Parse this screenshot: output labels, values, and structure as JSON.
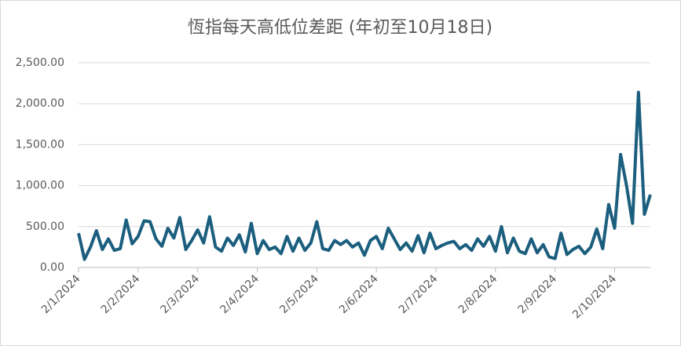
{
  "chart_data": {
    "type": "line",
    "title": "恆指每天高低位差距 (年初至10月18日)",
    "categories": [
      "2/1/2024",
      null,
      null,
      null,
      null,
      null,
      null,
      null,
      null,
      null,
      "2/2/2024",
      null,
      null,
      null,
      null,
      null,
      null,
      null,
      null,
      null,
      "2/3/2024",
      null,
      null,
      null,
      null,
      null,
      null,
      null,
      null,
      null,
      "2/4/2024",
      null,
      null,
      null,
      null,
      null,
      null,
      null,
      null,
      null,
      "2/5/2024",
      null,
      null,
      null,
      null,
      null,
      null,
      null,
      null,
      null,
      "2/6/2024",
      null,
      null,
      null,
      null,
      null,
      null,
      null,
      null,
      null,
      "2/7/2024",
      null,
      null,
      null,
      null,
      null,
      null,
      null,
      null,
      null,
      "2/8/2024",
      null,
      null,
      null,
      null,
      null,
      null,
      null,
      null,
      null,
      "2/9/2024",
      null,
      null,
      null,
      null,
      null,
      null,
      null,
      null,
      null,
      "2/10/2024",
      null,
      null,
      null,
      null,
      null,
      null
    ],
    "series": [
      {
        "color": "#1b5e7e",
        "values": [
          420,
          100,
          250,
          450,
          220,
          350,
          210,
          230,
          580,
          290,
          380,
          570,
          560,
          350,
          260,
          480,
          360,
          610,
          220,
          330,
          460,
          300,
          620,
          250,
          200,
          360,
          270,
          400,
          190,
          540,
          170,
          330,
          220,
          250,
          170,
          380,
          200,
          360,
          210,
          300,
          560,
          230,
          210,
          330,
          280,
          330,
          250,
          300,
          150,
          330,
          380,
          230,
          480,
          350,
          220,
          300,
          200,
          390,
          180,
          420,
          230,
          270,
          300,
          320,
          230,
          280,
          210,
          350,
          260,
          380,
          200,
          500,
          180,
          360,
          200,
          170,
          350,
          180,
          280,
          130,
          110,
          420,
          160,
          220,
          260,
          170,
          250,
          470,
          230,
          770,
          480,
          1380,
          1000,
          540,
          2140,
          650,
          890
        ]
      }
    ],
    "ylim": [
      0,
      2500
    ],
    "yticks": [
      {
        "value": 0,
        "label": "0.00"
      },
      {
        "value": 500,
        "label": "500.00"
      },
      {
        "value": 1000,
        "label": "1,000.00"
      },
      {
        "value": 1500,
        "label": "1,500.00"
      },
      {
        "value": 2000,
        "label": "2,000.00"
      },
      {
        "value": 2500,
        "label": "2,500.00"
      }
    ],
    "grid": true
  }
}
